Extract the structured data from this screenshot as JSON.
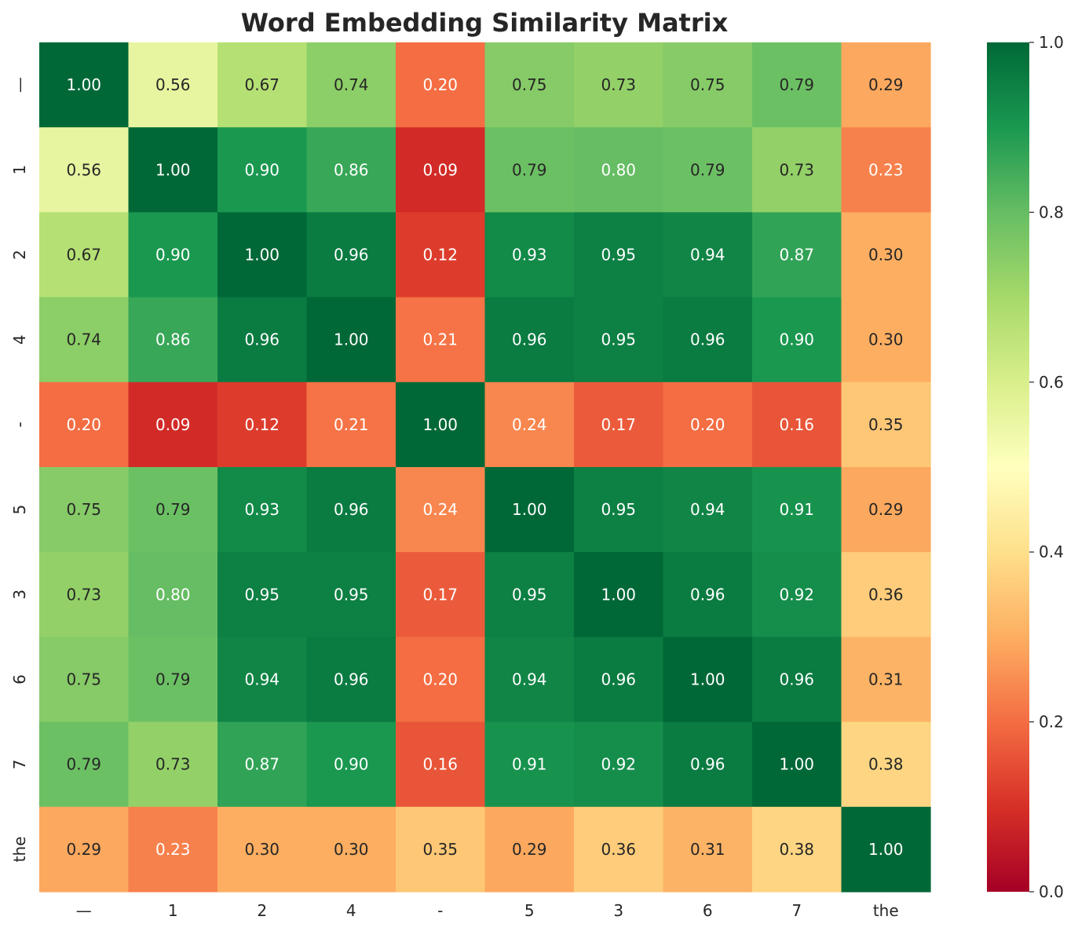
{
  "chart_data": {
    "type": "heatmap",
    "title": "Word Embedding Similarity Matrix",
    "xlabel": "",
    "ylabel": "",
    "x_categories": [
      "—",
      "1",
      "2",
      "4",
      "-",
      "5",
      "3",
      "6",
      "7",
      "the"
    ],
    "y_categories": [
      "—",
      "1",
      "2",
      "4",
      "-",
      "5",
      "3",
      "6",
      "7",
      "the"
    ],
    "values": [
      [
        1.0,
        0.56,
        0.67,
        0.74,
        0.2,
        0.75,
        0.73,
        0.75,
        0.79,
        0.29
      ],
      [
        0.56,
        1.0,
        0.9,
        0.86,
        0.09,
        0.79,
        0.8,
        0.79,
        0.73,
        0.23
      ],
      [
        0.67,
        0.9,
        1.0,
        0.96,
        0.12,
        0.93,
        0.95,
        0.94,
        0.87,
        0.3
      ],
      [
        0.74,
        0.86,
        0.96,
        1.0,
        0.21,
        0.96,
        0.95,
        0.96,
        0.9,
        0.3
      ],
      [
        0.2,
        0.09,
        0.12,
        0.21,
        1.0,
        0.24,
        0.17,
        0.2,
        0.16,
        0.35
      ],
      [
        0.75,
        0.79,
        0.93,
        0.96,
        0.24,
        1.0,
        0.95,
        0.94,
        0.91,
        0.29
      ],
      [
        0.73,
        0.8,
        0.95,
        0.95,
        0.17,
        0.95,
        1.0,
        0.96,
        0.92,
        0.36
      ],
      [
        0.75,
        0.79,
        0.94,
        0.96,
        0.2,
        0.94,
        0.96,
        1.0,
        0.96,
        0.31
      ],
      [
        0.79,
        0.73,
        0.87,
        0.9,
        0.16,
        0.91,
        0.92,
        0.96,
        1.0,
        0.38
      ],
      [
        0.29,
        0.23,
        0.3,
        0.3,
        0.35,
        0.29,
        0.36,
        0.31,
        0.38,
        1.0
      ]
    ],
    "value_format": "0.00",
    "colormap": "RdYlGn",
    "colormap_stops": [
      {
        "v": 0.0,
        "color": "#a50026"
      },
      {
        "v": 0.1,
        "color": "#d73027"
      },
      {
        "v": 0.2,
        "color": "#f46d43"
      },
      {
        "v": 0.3,
        "color": "#fdae61"
      },
      {
        "v": 0.4,
        "color": "#fee08b"
      },
      {
        "v": 0.5,
        "color": "#ffffbf"
      },
      {
        "v": 0.6,
        "color": "#d9ef8b"
      },
      {
        "v": 0.7,
        "color": "#a6d96a"
      },
      {
        "v": 0.8,
        "color": "#66bd63"
      },
      {
        "v": 0.9,
        "color": "#1a9850"
      },
      {
        "v": 1.0,
        "color": "#006837"
      }
    ],
    "vmin": 0.0,
    "vmax": 1.0,
    "colorbar_ticks": [
      {
        "value": 0.0,
        "label": "0.0"
      },
      {
        "value": 0.2,
        "label": "0.2"
      },
      {
        "value": 0.4,
        "label": "0.4"
      },
      {
        "value": 0.6,
        "label": "0.6"
      },
      {
        "value": 0.8,
        "label": "0.8"
      },
      {
        "value": 1.0,
        "label": "1.0"
      }
    ],
    "annotation_light_color": "#ffffff",
    "annotation_dark_color": "#262626",
    "grid": false,
    "legend": "colorbar-right"
  }
}
